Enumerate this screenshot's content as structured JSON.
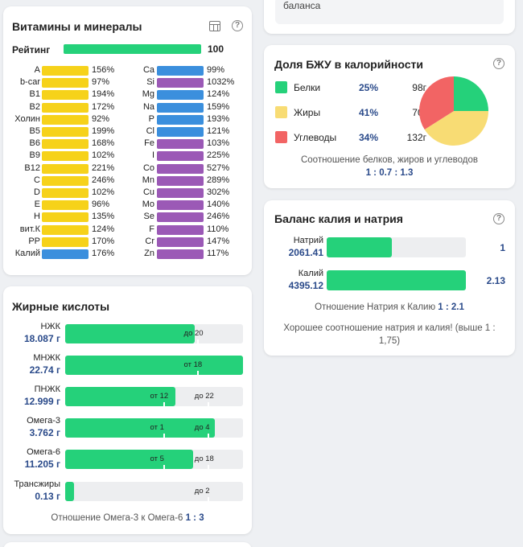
{
  "top_stub": {
    "text": "баланса"
  },
  "vitamins": {
    "title": "Витамины и минералы",
    "rating_label": "Рейтинг",
    "rating_value": "100",
    "left_items": [
      {
        "name": "A",
        "pct": "156%"
      },
      {
        "name": "b-car",
        "pct": "97%"
      },
      {
        "name": "B1",
        "pct": "194%"
      },
      {
        "name": "B2",
        "pct": "172%"
      },
      {
        "name": "Холин",
        "pct": "92%"
      },
      {
        "name": "B5",
        "pct": "199%"
      },
      {
        "name": "B6",
        "pct": "168%"
      },
      {
        "name": "B9",
        "pct": "102%"
      },
      {
        "name": "B12",
        "pct": "221%"
      },
      {
        "name": "C",
        "pct": "246%"
      },
      {
        "name": "D",
        "pct": "102%"
      },
      {
        "name": "E",
        "pct": "96%"
      },
      {
        "name": "H",
        "pct": "135%"
      },
      {
        "name": "вит.К",
        "pct": "124%"
      },
      {
        "name": "PP",
        "pct": "170%"
      },
      {
        "name": "Калий",
        "pct": "176%"
      }
    ],
    "right_items": [
      {
        "name": "Ca",
        "pct": "99%"
      },
      {
        "name": "Si",
        "pct": "1032%"
      },
      {
        "name": "Mg",
        "pct": "124%"
      },
      {
        "name": "Na",
        "pct": "159%"
      },
      {
        "name": "P",
        "pct": "193%"
      },
      {
        "name": "Cl",
        "pct": "121%"
      },
      {
        "name": "Fe",
        "pct": "103%"
      },
      {
        "name": "I",
        "pct": "225%"
      },
      {
        "name": "Co",
        "pct": "527%"
      },
      {
        "name": "Mn",
        "pct": "289%"
      },
      {
        "name": "Cu",
        "pct": "302%"
      },
      {
        "name": "Mo",
        "pct": "140%"
      },
      {
        "name": "Se",
        "pct": "246%"
      },
      {
        "name": "F",
        "pct": "110%"
      },
      {
        "name": "Cr",
        "pct": "147%"
      },
      {
        "name": "Zn",
        "pct": "117%"
      }
    ]
  },
  "fats": {
    "title": "Жирные кислоты",
    "rows": [
      {
        "name": "НЖК",
        "value": "18.087 г",
        "fill": 0.73,
        "labels": [
          {
            "text": "до 20",
            "pos": 0.74
          }
        ]
      },
      {
        "name": "МНЖК",
        "value": "22.74 г",
        "fill": 1.0,
        "labels": [
          {
            "text": "от 18",
            "pos": 0.74
          }
        ]
      },
      {
        "name": "ПНЖК",
        "value": "12.999 г",
        "fill": 0.62,
        "labels": [
          {
            "text": "от 12",
            "pos": 0.55
          },
          {
            "text": "до 22",
            "pos": 0.8
          }
        ]
      },
      {
        "name": "Омега-3",
        "value": "3.762 г",
        "fill": 0.84,
        "labels": [
          {
            "text": "от 1",
            "pos": 0.55
          },
          {
            "text": "до 4",
            "pos": 0.8
          }
        ]
      },
      {
        "name": "Омега-6",
        "value": "11.205 г",
        "fill": 0.72,
        "labels": [
          {
            "text": "от 5",
            "pos": 0.55
          },
          {
            "text": "до 18",
            "pos": 0.8
          }
        ]
      },
      {
        "name": "Трансжиры",
        "value": "0.13 г",
        "fill": 0.05,
        "labels": [
          {
            "text": "до 2",
            "pos": 0.8
          }
        ]
      }
    ],
    "ratio_text": "Отношение Омега-3 к Омега-6",
    "ratio_value": "1 : 3"
  },
  "bju": {
    "title": "Доля БЖУ в калорийности",
    "items": [
      {
        "name": "Белки",
        "pct": "25%",
        "grams": "98г",
        "color": "#25d17a"
      },
      {
        "name": "Жиры",
        "pct": "41%",
        "grams": "70г",
        "color": "#f8dc74"
      },
      {
        "name": "Углеводы",
        "pct": "34%",
        "grams": "132г",
        "color": "#f26464"
      }
    ],
    "caption": "Соотношение белков, жиров и углеводов",
    "ratio": "1 : 0.7 : 1.3"
  },
  "chart_data": {
    "type": "pie",
    "categories": [
      "Белки",
      "Жиры",
      "Углеводы"
    ],
    "values": [
      25,
      41,
      34
    ],
    "colors": [
      "#25d17a",
      "#f8dc74",
      "#f26464"
    ]
  },
  "kna": {
    "title": "Баланс калия и натрия",
    "rows": [
      {
        "name": "Натрий",
        "value": "2061.41",
        "fill": 0.47,
        "ratio": "1"
      },
      {
        "name": "Калий",
        "value": "4395.12",
        "fill": 1.0,
        "ratio": "2.13"
      }
    ],
    "ratio_text": "Отношение Натрия к Калию",
    "ratio_value": "1 : 2.1",
    "message": "Хорошее соотношение натрия и калия! (выше 1 : 1,75)"
  }
}
